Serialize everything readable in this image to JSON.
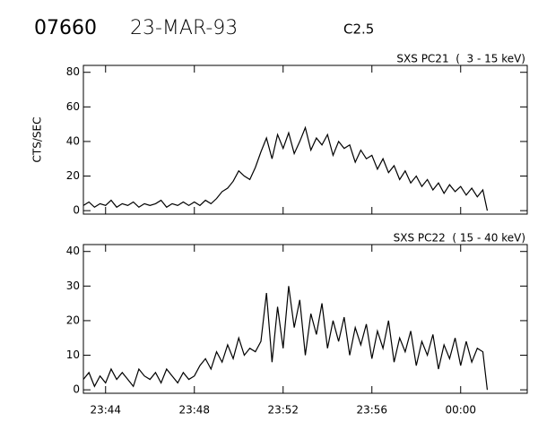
{
  "header": {
    "id": "07660",
    "date": "23-MAR-93",
    "class": "C2.5"
  },
  "chart_data": [
    {
      "type": "line",
      "title": "SXS PC21  (  3 - 15 keV)",
      "y_label": "CTS/SEC",
      "x": [
        -1,
        -0.75,
        -0.5,
        -0.25,
        0,
        0.25,
        0.5,
        0.75,
        1,
        1.25,
        1.5,
        1.75,
        2,
        2.25,
        2.5,
        2.75,
        3,
        3.25,
        3.5,
        3.75,
        4,
        4.25,
        4.5,
        4.75,
        5,
        5.25,
        5.5,
        5.75,
        6,
        6.25,
        6.5,
        6.75,
        7,
        7.25,
        7.5,
        7.75,
        8,
        8.25,
        8.5,
        8.75,
        9,
        9.25,
        9.5,
        9.75,
        10,
        10.25,
        10.5,
        10.75,
        11,
        11.25,
        11.5,
        11.75,
        12,
        12.25,
        12.5,
        12.75,
        13,
        13.25,
        13.5,
        13.75,
        14,
        14.25,
        14.5,
        14.75,
        15,
        15.25,
        15.5,
        15.75,
        16,
        16.25,
        16.5,
        16.75,
        17,
        17.2
      ],
      "series": [
        {
          "color": "#000000",
          "values": [
            3,
            5,
            2,
            4,
            3,
            6,
            2,
            4,
            3,
            5,
            2,
            4,
            3,
            4,
            6,
            2,
            4,
            3,
            5,
            3,
            5,
            3,
            6,
            4,
            7,
            11,
            13,
            17,
            23,
            20,
            18,
            25,
            34,
            42,
            30,
            44,
            36,
            45,
            33,
            40,
            48,
            35,
            42,
            38,
            44,
            32,
            40,
            36,
            38,
            28,
            35,
            30,
            32,
            24,
            30,
            22,
            26,
            18,
            23,
            16,
            20,
            14,
            18,
            12,
            16,
            10,
            15,
            11,
            14,
            9,
            13,
            8,
            12,
            0
          ]
        }
      ],
      "xlim": [
        -1,
        19
      ],
      "xticks": [
        0,
        4,
        8,
        12,
        16
      ],
      "ylim": [
        -2,
        84
      ],
      "yticks": [
        0,
        20,
        40,
        60,
        80
      ]
    },
    {
      "type": "line",
      "title": "SXS PC22  ( 15 - 40 keV)",
      "x": [
        -1,
        -0.75,
        -0.5,
        -0.25,
        0,
        0.25,
        0.5,
        0.75,
        1,
        1.25,
        1.5,
        1.75,
        2,
        2.25,
        2.5,
        2.75,
        3,
        3.25,
        3.5,
        3.75,
        4,
        4.25,
        4.5,
        4.75,
        5,
        5.25,
        5.5,
        5.75,
        6,
        6.25,
        6.5,
        6.75,
        7,
        7.25,
        7.5,
        7.75,
        8,
        8.25,
        8.5,
        8.75,
        9,
        9.25,
        9.5,
        9.75,
        10,
        10.25,
        10.5,
        10.75,
        11,
        11.25,
        11.5,
        11.75,
        12,
        12.25,
        12.5,
        12.75,
        13,
        13.25,
        13.5,
        13.75,
        14,
        14.25,
        14.5,
        14.75,
        15,
        15.25,
        15.5,
        15.75,
        16,
        16.25,
        16.5,
        16.75,
        17,
        17.2
      ],
      "series": [
        {
          "color": "#000000",
          "values": [
            3,
            5,
            1,
            4,
            2,
            6,
            3,
            5,
            3,
            1,
            6,
            4,
            3,
            5,
            2,
            6,
            4,
            2,
            5,
            3,
            4,
            7,
            9,
            6,
            11,
            8,
            13,
            9,
            15,
            10,
            12,
            11,
            14,
            28,
            8,
            24,
            12,
            30,
            18,
            26,
            10,
            22,
            16,
            25,
            12,
            20,
            14,
            21,
            10,
            18,
            13,
            19,
            9,
            17,
            12,
            20,
            8,
            15,
            11,
            17,
            7,
            14,
            10,
            16,
            6,
            13,
            9,
            15,
            7,
            14,
            8,
            12,
            11,
            0
          ]
        }
      ],
      "xlim": [
        -1,
        19
      ],
      "xticks": [
        {
          "value": 0,
          "label": "23:44"
        },
        {
          "value": 4,
          "label": "23:48"
        },
        {
          "value": 8,
          "label": "23:52"
        },
        {
          "value": 12,
          "label": "23:56"
        },
        {
          "value": 16,
          "label": "00:00"
        }
      ],
      "ylim": [
        -1,
        42
      ],
      "yticks": [
        0,
        10,
        20,
        30,
        40
      ]
    }
  ]
}
